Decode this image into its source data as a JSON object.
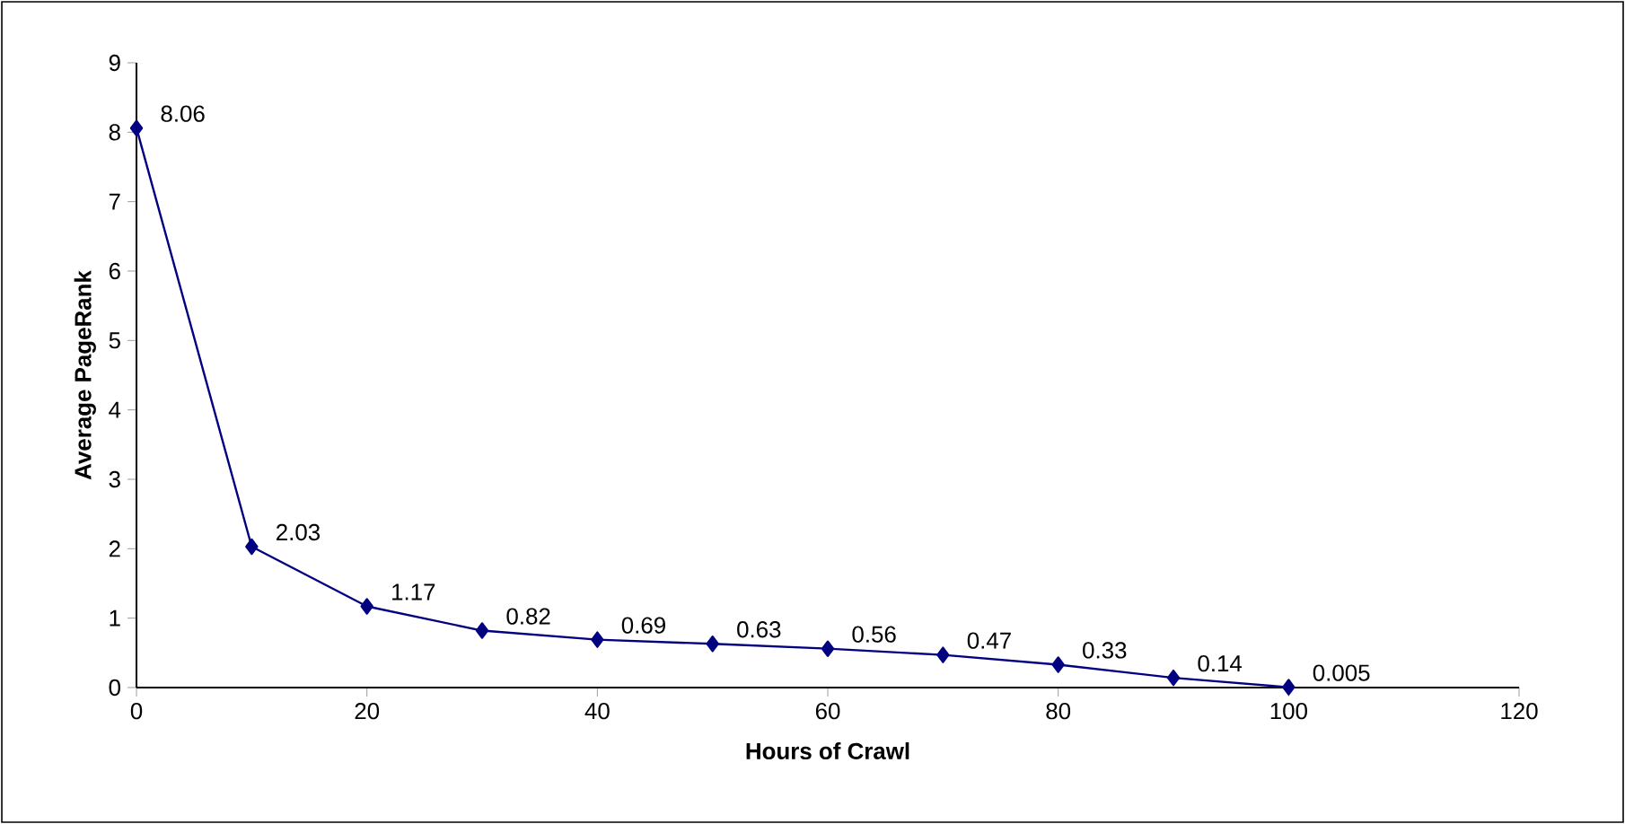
{
  "chart_data": {
    "type": "line",
    "xlabel": "Hours of Crawl",
    "ylabel": "Average PageRank",
    "x": [
      0,
      10,
      20,
      30,
      40,
      50,
      60,
      70,
      80,
      90,
      100
    ],
    "values": [
      8.06,
      2.03,
      1.17,
      0.82,
      0.69,
      0.63,
      0.56,
      0.47,
      0.33,
      0.14,
      0.005
    ],
    "value_labels": [
      "8.06",
      "2.03",
      "1.17",
      "0.82",
      "0.69",
      "0.63",
      "0.56",
      "0.47",
      "0.33",
      "0.14",
      "0.005"
    ],
    "color": "#000080",
    "marker": "diamond",
    "line_style": "solid",
    "xlim": [
      0,
      120
    ],
    "xticks": [
      0,
      20,
      40,
      60,
      80,
      100,
      120
    ],
    "ylim": [
      0,
      9
    ],
    "yticks": [
      0,
      1,
      2,
      3,
      4,
      5,
      6,
      7,
      8,
      9
    ]
  }
}
